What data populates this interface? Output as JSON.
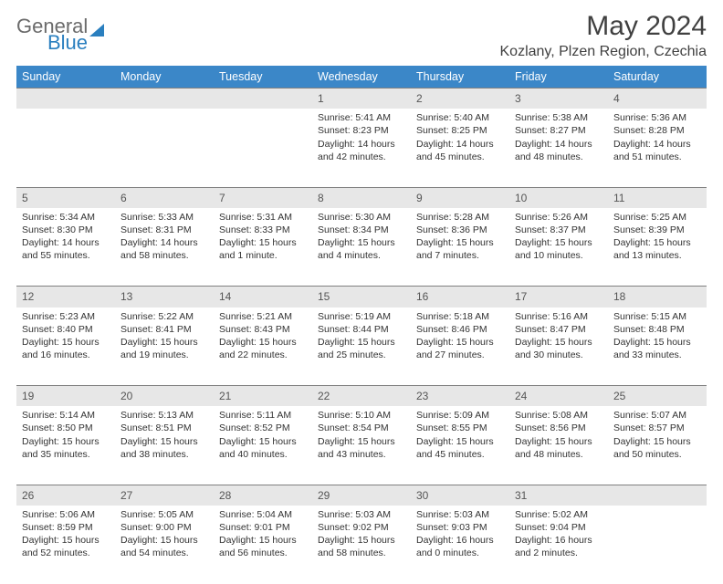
{
  "logo": {
    "part1": "General",
    "part2": "Blue"
  },
  "title": "May 2024",
  "location": "Kozlany, Plzen Region, Czechia",
  "colors": {
    "header_bg": "#3b87c8",
    "header_text": "#ffffff",
    "daynum_bg": "#e7e7e7",
    "daynum_border": "#808080",
    "text": "#333333",
    "logo_gray": "#6b6b6b",
    "logo_blue": "#2a7fbf"
  },
  "day_headers": [
    "Sunday",
    "Monday",
    "Tuesday",
    "Wednesday",
    "Thursday",
    "Friday",
    "Saturday"
  ],
  "weeks": [
    [
      {
        "n": "",
        "sr": "",
        "ss": "",
        "dl": ""
      },
      {
        "n": "",
        "sr": "",
        "ss": "",
        "dl": ""
      },
      {
        "n": "",
        "sr": "",
        "ss": "",
        "dl": ""
      },
      {
        "n": "1",
        "sr": "Sunrise: 5:41 AM",
        "ss": "Sunset: 8:23 PM",
        "dl": "Daylight: 14 hours and 42 minutes."
      },
      {
        "n": "2",
        "sr": "Sunrise: 5:40 AM",
        "ss": "Sunset: 8:25 PM",
        "dl": "Daylight: 14 hours and 45 minutes."
      },
      {
        "n": "3",
        "sr": "Sunrise: 5:38 AM",
        "ss": "Sunset: 8:27 PM",
        "dl": "Daylight: 14 hours and 48 minutes."
      },
      {
        "n": "4",
        "sr": "Sunrise: 5:36 AM",
        "ss": "Sunset: 8:28 PM",
        "dl": "Daylight: 14 hours and 51 minutes."
      }
    ],
    [
      {
        "n": "5",
        "sr": "Sunrise: 5:34 AM",
        "ss": "Sunset: 8:30 PM",
        "dl": "Daylight: 14 hours and 55 minutes."
      },
      {
        "n": "6",
        "sr": "Sunrise: 5:33 AM",
        "ss": "Sunset: 8:31 PM",
        "dl": "Daylight: 14 hours and 58 minutes."
      },
      {
        "n": "7",
        "sr": "Sunrise: 5:31 AM",
        "ss": "Sunset: 8:33 PM",
        "dl": "Daylight: 15 hours and 1 minute."
      },
      {
        "n": "8",
        "sr": "Sunrise: 5:30 AM",
        "ss": "Sunset: 8:34 PM",
        "dl": "Daylight: 15 hours and 4 minutes."
      },
      {
        "n": "9",
        "sr": "Sunrise: 5:28 AM",
        "ss": "Sunset: 8:36 PM",
        "dl": "Daylight: 15 hours and 7 minutes."
      },
      {
        "n": "10",
        "sr": "Sunrise: 5:26 AM",
        "ss": "Sunset: 8:37 PM",
        "dl": "Daylight: 15 hours and 10 minutes."
      },
      {
        "n": "11",
        "sr": "Sunrise: 5:25 AM",
        "ss": "Sunset: 8:39 PM",
        "dl": "Daylight: 15 hours and 13 minutes."
      }
    ],
    [
      {
        "n": "12",
        "sr": "Sunrise: 5:23 AM",
        "ss": "Sunset: 8:40 PM",
        "dl": "Daylight: 15 hours and 16 minutes."
      },
      {
        "n": "13",
        "sr": "Sunrise: 5:22 AM",
        "ss": "Sunset: 8:41 PM",
        "dl": "Daylight: 15 hours and 19 minutes."
      },
      {
        "n": "14",
        "sr": "Sunrise: 5:21 AM",
        "ss": "Sunset: 8:43 PM",
        "dl": "Daylight: 15 hours and 22 minutes."
      },
      {
        "n": "15",
        "sr": "Sunrise: 5:19 AM",
        "ss": "Sunset: 8:44 PM",
        "dl": "Daylight: 15 hours and 25 minutes."
      },
      {
        "n": "16",
        "sr": "Sunrise: 5:18 AM",
        "ss": "Sunset: 8:46 PM",
        "dl": "Daylight: 15 hours and 27 minutes."
      },
      {
        "n": "17",
        "sr": "Sunrise: 5:16 AM",
        "ss": "Sunset: 8:47 PM",
        "dl": "Daylight: 15 hours and 30 minutes."
      },
      {
        "n": "18",
        "sr": "Sunrise: 5:15 AM",
        "ss": "Sunset: 8:48 PM",
        "dl": "Daylight: 15 hours and 33 minutes."
      }
    ],
    [
      {
        "n": "19",
        "sr": "Sunrise: 5:14 AM",
        "ss": "Sunset: 8:50 PM",
        "dl": "Daylight: 15 hours and 35 minutes."
      },
      {
        "n": "20",
        "sr": "Sunrise: 5:13 AM",
        "ss": "Sunset: 8:51 PM",
        "dl": "Daylight: 15 hours and 38 minutes."
      },
      {
        "n": "21",
        "sr": "Sunrise: 5:11 AM",
        "ss": "Sunset: 8:52 PM",
        "dl": "Daylight: 15 hours and 40 minutes."
      },
      {
        "n": "22",
        "sr": "Sunrise: 5:10 AM",
        "ss": "Sunset: 8:54 PM",
        "dl": "Daylight: 15 hours and 43 minutes."
      },
      {
        "n": "23",
        "sr": "Sunrise: 5:09 AM",
        "ss": "Sunset: 8:55 PM",
        "dl": "Daylight: 15 hours and 45 minutes."
      },
      {
        "n": "24",
        "sr": "Sunrise: 5:08 AM",
        "ss": "Sunset: 8:56 PM",
        "dl": "Daylight: 15 hours and 48 minutes."
      },
      {
        "n": "25",
        "sr": "Sunrise: 5:07 AM",
        "ss": "Sunset: 8:57 PM",
        "dl": "Daylight: 15 hours and 50 minutes."
      }
    ],
    [
      {
        "n": "26",
        "sr": "Sunrise: 5:06 AM",
        "ss": "Sunset: 8:59 PM",
        "dl": "Daylight: 15 hours and 52 minutes."
      },
      {
        "n": "27",
        "sr": "Sunrise: 5:05 AM",
        "ss": "Sunset: 9:00 PM",
        "dl": "Daylight: 15 hours and 54 minutes."
      },
      {
        "n": "28",
        "sr": "Sunrise: 5:04 AM",
        "ss": "Sunset: 9:01 PM",
        "dl": "Daylight: 15 hours and 56 minutes."
      },
      {
        "n": "29",
        "sr": "Sunrise: 5:03 AM",
        "ss": "Sunset: 9:02 PM",
        "dl": "Daylight: 15 hours and 58 minutes."
      },
      {
        "n": "30",
        "sr": "Sunrise: 5:03 AM",
        "ss": "Sunset: 9:03 PM",
        "dl": "Daylight: 16 hours and 0 minutes."
      },
      {
        "n": "31",
        "sr": "Sunrise: 5:02 AM",
        "ss": "Sunset: 9:04 PM",
        "dl": "Daylight: 16 hours and 2 minutes."
      },
      {
        "n": "",
        "sr": "",
        "ss": "",
        "dl": ""
      }
    ]
  ]
}
